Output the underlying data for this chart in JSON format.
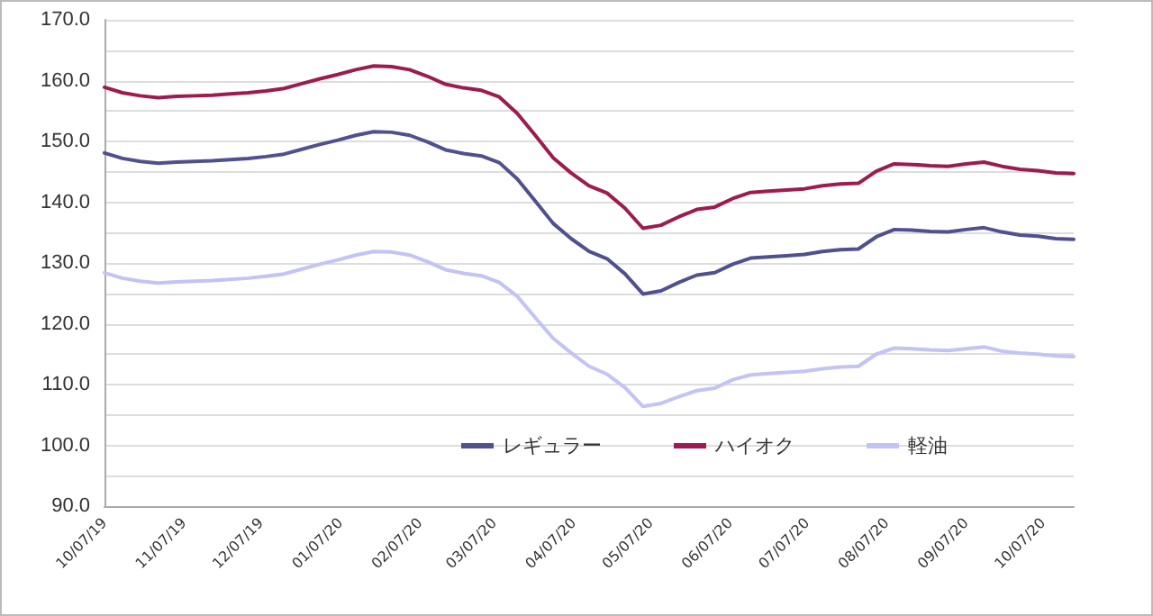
{
  "chart_data": {
    "type": "line",
    "x": [
      "2019-10-07",
      "2019-10-14",
      "2019-10-21",
      "2019-10-28",
      "2019-11-04",
      "2019-11-11",
      "2019-11-18",
      "2019-11-25",
      "2019-12-02",
      "2019-12-09",
      "2019-12-16",
      "2019-12-23",
      "2019-12-30",
      "2020-01-06",
      "2020-01-13",
      "2020-01-20",
      "2020-01-27",
      "2020-02-03",
      "2020-02-10",
      "2020-02-17",
      "2020-02-24",
      "2020-03-02",
      "2020-03-09",
      "2020-03-16",
      "2020-03-23",
      "2020-03-30",
      "2020-04-06",
      "2020-04-13",
      "2020-04-20",
      "2020-04-27",
      "2020-05-04",
      "2020-05-11",
      "2020-05-18",
      "2020-05-25",
      "2020-06-01",
      "2020-06-08",
      "2020-06-15",
      "2020-06-22",
      "2020-06-29",
      "2020-07-06",
      "2020-07-13",
      "2020-07-20",
      "2020-07-27",
      "2020-08-03",
      "2020-08-10",
      "2020-08-17",
      "2020-08-24",
      "2020-08-31",
      "2020-09-07",
      "2020-09-14",
      "2020-09-21",
      "2020-09-28",
      "2020-10-05",
      "2020-10-12",
      "2020-10-19"
    ],
    "series": [
      {
        "name": "レギュラー",
        "color": "#50508f",
        "values": [
          148.1,
          147.2,
          146.7,
          146.4,
          146.6,
          146.7,
          146.8,
          147.0,
          147.2,
          147.5,
          147.9,
          148.7,
          149.5,
          150.2,
          151.0,
          151.6,
          151.5,
          151.0,
          149.9,
          148.6,
          148.0,
          147.6,
          146.5,
          143.8,
          140.2,
          136.5,
          134.0,
          131.9,
          130.7,
          128.2,
          124.9,
          125.4,
          126.8,
          128.0,
          128.4,
          129.8,
          130.8,
          131.0,
          131.2,
          131.4,
          131.9,
          132.2,
          132.3,
          134.3,
          135.5,
          135.4,
          135.2,
          135.1,
          135.5,
          135.8,
          135.1,
          134.6,
          134.4,
          134.0,
          133.9
        ]
      },
      {
        "name": "ハイオク",
        "color": "#9c1c50",
        "values": [
          158.9,
          158.0,
          157.5,
          157.2,
          157.4,
          157.5,
          157.6,
          157.8,
          158.0,
          158.3,
          158.7,
          159.5,
          160.3,
          161.0,
          161.8,
          162.4,
          162.3,
          161.8,
          160.7,
          159.4,
          158.8,
          158.4,
          157.3,
          154.6,
          151.0,
          147.3,
          144.8,
          142.7,
          141.5,
          139.0,
          135.7,
          136.2,
          137.6,
          138.8,
          139.2,
          140.6,
          141.6,
          141.8,
          142.0,
          142.2,
          142.7,
          143.0,
          143.1,
          145.1,
          146.3,
          146.2,
          146.0,
          145.9,
          146.3,
          146.6,
          145.9,
          145.4,
          145.2,
          144.8,
          144.7
        ]
      },
      {
        "name": "軽油",
        "color": "#c3c3f5",
        "values": [
          128.4,
          127.5,
          127.0,
          126.7,
          126.9,
          127.0,
          127.1,
          127.3,
          127.5,
          127.8,
          128.2,
          129.0,
          129.8,
          130.5,
          131.3,
          131.9,
          131.8,
          131.3,
          130.2,
          128.9,
          128.3,
          127.9,
          126.8,
          124.5,
          121.0,
          117.6,
          115.2,
          113.0,
          111.7,
          109.5,
          106.4,
          106.9,
          108.0,
          109.0,
          109.4,
          110.8,
          111.6,
          111.8,
          112.0,
          112.2,
          112.6,
          112.9,
          113.0,
          115.0,
          116.0,
          115.9,
          115.7,
          115.6,
          115.9,
          116.2,
          115.5,
          115.2,
          115.0,
          114.7,
          114.6
        ]
      }
    ],
    "xlim": [
      "2019-10-07",
      "2020-10-19"
    ],
    "xticks": [
      {
        "value": "2019-10-07",
        "label": "10/07/19"
      },
      {
        "value": "2019-11-07",
        "label": "11/07/19"
      },
      {
        "value": "2019-12-07",
        "label": "12/07/19"
      },
      {
        "value": "2020-01-07",
        "label": "01/07/20"
      },
      {
        "value": "2020-02-07",
        "label": "02/07/20"
      },
      {
        "value": "2020-03-07",
        "label": "03/07/20"
      },
      {
        "value": "2020-04-07",
        "label": "04/07/20"
      },
      {
        "value": "2020-05-07",
        "label": "05/07/20"
      },
      {
        "value": "2020-06-07",
        "label": "06/07/20"
      },
      {
        "value": "2020-07-07",
        "label": "07/07/20"
      },
      {
        "value": "2020-08-07",
        "label": "08/07/20"
      },
      {
        "value": "2020-09-07",
        "label": "09/07/20"
      },
      {
        "value": "2020-10-07",
        "label": "10/07/20"
      }
    ],
    "ylim": [
      90,
      170
    ],
    "yticks": [
      {
        "value": 90,
        "label": "90.0"
      },
      {
        "value": 95,
        "label": null
      },
      {
        "value": 100,
        "label": "100.0"
      },
      {
        "value": 105,
        "label": null
      },
      {
        "value": 110,
        "label": "110.0"
      },
      {
        "value": 115,
        "label": null
      },
      {
        "value": 120,
        "label": "120.0"
      },
      {
        "value": 125,
        "label": null
      },
      {
        "value": 130,
        "label": "130.0"
      },
      {
        "value": 135,
        "label": null
      },
      {
        "value": 140,
        "label": "140.0"
      },
      {
        "value": 145,
        "label": null
      },
      {
        "value": 150,
        "label": "150.0"
      },
      {
        "value": 155,
        "label": null
      },
      {
        "value": 160,
        "label": "160.0"
      },
      {
        "value": 165,
        "label": null
      },
      {
        "value": 170,
        "label": "170.0"
      }
    ],
    "grid": "y",
    "legend": "bottom",
    "marker": "none",
    "line_style": "solid"
  }
}
